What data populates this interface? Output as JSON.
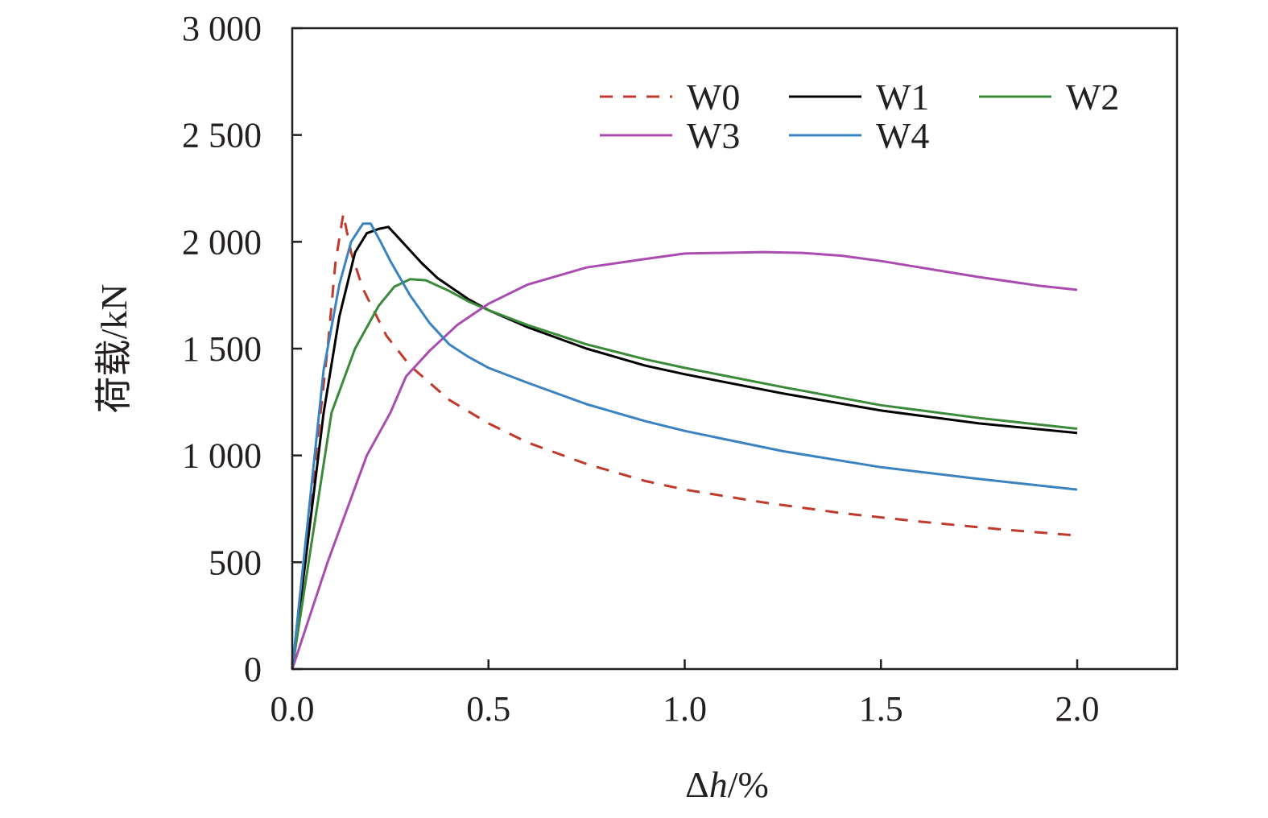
{
  "chart_data": {
    "type": "line",
    "xlabel_symbol": "Δ",
    "xlabel_var": "h",
    "xlabel_unit": "/%",
    "ylabel": "荷载/kN",
    "xlim": [
      0,
      2.25
    ],
    "ylim": [
      0,
      3000
    ],
    "xticks": [
      0,
      0.5,
      1.0,
      1.5,
      2.0
    ],
    "xtick_labels": [
      "0.0",
      "0.5",
      "1.0",
      "1.5",
      "2.0"
    ],
    "yticks": [
      0,
      500,
      1000,
      1500,
      2000,
      2500,
      3000
    ],
    "ytick_labels": [
      "0",
      "500",
      "1 000",
      "1 500",
      "2 000",
      "2 500",
      "3 000"
    ],
    "grid": false,
    "legend_position": "top-right",
    "series": [
      {
        "name": "W0",
        "color": "#c0392b",
        "dash": "dashed",
        "points": [
          [
            0,
            0
          ],
          [
            0.03,
            500
          ],
          [
            0.06,
            1000
          ],
          [
            0.09,
            1500
          ],
          [
            0.11,
            1900
          ],
          [
            0.13,
            2130
          ],
          [
            0.15,
            1950
          ],
          [
            0.18,
            1780
          ],
          [
            0.24,
            1560
          ],
          [
            0.3,
            1420
          ],
          [
            0.4,
            1260
          ],
          [
            0.5,
            1150
          ],
          [
            0.6,
            1060
          ],
          [
            0.75,
            960
          ],
          [
            0.9,
            880
          ],
          [
            1.0,
            840
          ],
          [
            1.2,
            780
          ],
          [
            1.4,
            730
          ],
          [
            1.6,
            690
          ],
          [
            1.8,
            655
          ],
          [
            2.0,
            625
          ]
        ]
      },
      {
        "name": "W1",
        "color": "#000000",
        "dash": "solid",
        "points": [
          [
            0,
            0
          ],
          [
            0.04,
            600
          ],
          [
            0.08,
            1200
          ],
          [
            0.12,
            1650
          ],
          [
            0.16,
            1950
          ],
          [
            0.19,
            2040
          ],
          [
            0.22,
            2060
          ],
          [
            0.245,
            2070
          ],
          [
            0.28,
            2000
          ],
          [
            0.33,
            1900
          ],
          [
            0.37,
            1830
          ],
          [
            0.45,
            1730
          ],
          [
            0.5,
            1680
          ],
          [
            0.6,
            1600
          ],
          [
            0.75,
            1500
          ],
          [
            0.9,
            1420
          ],
          [
            1.0,
            1380
          ],
          [
            1.25,
            1290
          ],
          [
            1.5,
            1210
          ],
          [
            1.75,
            1150
          ],
          [
            2.0,
            1105
          ]
        ]
      },
      {
        "name": "W2",
        "color": "#3a8a3a",
        "dash": "solid",
        "points": [
          [
            0,
            0
          ],
          [
            0.05,
            600
          ],
          [
            0.1,
            1200
          ],
          [
            0.16,
            1500
          ],
          [
            0.22,
            1700
          ],
          [
            0.26,
            1790
          ],
          [
            0.3,
            1825
          ],
          [
            0.34,
            1820
          ],
          [
            0.4,
            1770
          ],
          [
            0.45,
            1720
          ],
          [
            0.5,
            1680
          ],
          [
            0.6,
            1610
          ],
          [
            0.75,
            1520
          ],
          [
            0.9,
            1450
          ],
          [
            1.0,
            1410
          ],
          [
            1.25,
            1320
          ],
          [
            1.5,
            1235
          ],
          [
            1.75,
            1175
          ],
          [
            2.0,
            1125
          ]
        ]
      },
      {
        "name": "W3",
        "color": "#a94cb0",
        "dash": "solid",
        "points": [
          [
            0,
            0
          ],
          [
            0.09,
            500
          ],
          [
            0.19,
            1000
          ],
          [
            0.25,
            1200
          ],
          [
            0.29,
            1370
          ],
          [
            0.35,
            1490
          ],
          [
            0.42,
            1610
          ],
          [
            0.5,
            1710
          ],
          [
            0.6,
            1800
          ],
          [
            0.75,
            1880
          ],
          [
            0.9,
            1920
          ],
          [
            1.0,
            1945
          ],
          [
            1.2,
            1952
          ],
          [
            1.3,
            1948
          ],
          [
            1.4,
            1935
          ],
          [
            1.5,
            1910
          ],
          [
            1.6,
            1880
          ],
          [
            1.75,
            1835
          ],
          [
            1.9,
            1795
          ],
          [
            2.0,
            1775
          ]
        ]
      },
      {
        "name": "W4",
        "color": "#3b83c0",
        "dash": "solid",
        "points": [
          [
            0,
            0
          ],
          [
            0.04,
            700
          ],
          [
            0.08,
            1400
          ],
          [
            0.12,
            1800
          ],
          [
            0.15,
            2000
          ],
          [
            0.18,
            2085
          ],
          [
            0.2,
            2085
          ],
          [
            0.225,
            2000
          ],
          [
            0.25,
            1910
          ],
          [
            0.3,
            1750
          ],
          [
            0.35,
            1620
          ],
          [
            0.4,
            1520
          ],
          [
            0.45,
            1460
          ],
          [
            0.5,
            1410
          ],
          [
            0.6,
            1340
          ],
          [
            0.75,
            1240
          ],
          [
            0.9,
            1160
          ],
          [
            1.0,
            1115
          ],
          [
            1.25,
            1020
          ],
          [
            1.5,
            945
          ],
          [
            1.75,
            890
          ],
          [
            2.0,
            840
          ]
        ]
      }
    ]
  }
}
